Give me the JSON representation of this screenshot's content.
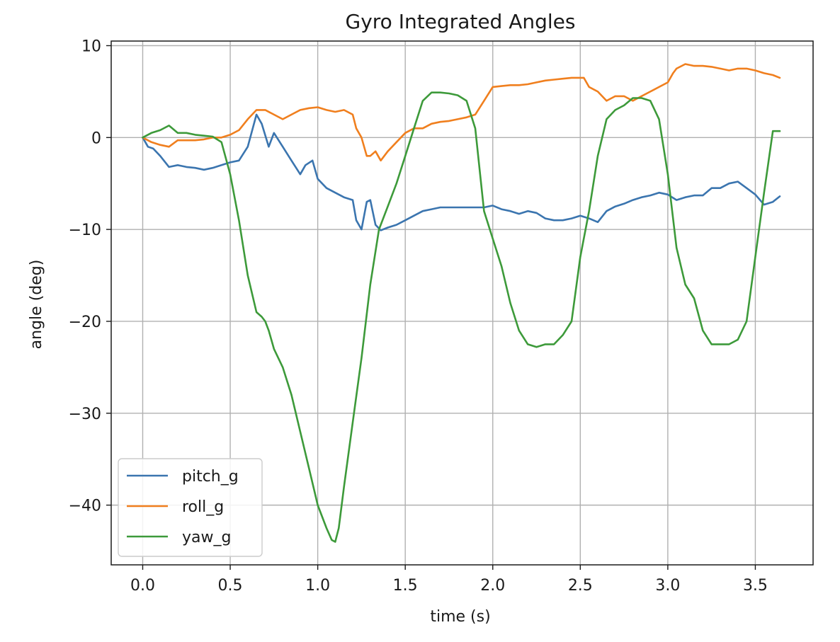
{
  "chart_data": {
    "type": "line",
    "title": "Gyro Integrated Angles",
    "xlabel": "time (s)",
    "ylabel": "angle (deg)",
    "xlim": [
      -0.18,
      3.83
    ],
    "ylim": [
      -46.5,
      10.5
    ],
    "xticks": [
      0.0,
      0.5,
      1.0,
      1.5,
      2.0,
      2.5,
      3.0,
      3.5
    ],
    "xtick_labels": [
      "0.0",
      "0.5",
      "1.0",
      "1.5",
      "2.0",
      "2.5",
      "3.0",
      "3.5"
    ],
    "yticks": [
      10,
      0,
      -10,
      -20,
      -30,
      -40
    ],
    "ytick_labels": [
      "10",
      "0",
      "−10",
      "−20",
      "−30",
      "−40"
    ],
    "grid": true,
    "legend": "lower left",
    "series": [
      {
        "name": "pitch_g",
        "color": "#3b75af",
        "x": [
          0.0,
          0.03,
          0.06,
          0.1,
          0.15,
          0.2,
          0.25,
          0.3,
          0.35,
          0.4,
          0.45,
          0.5,
          0.55,
          0.6,
          0.65,
          0.68,
          0.72,
          0.75,
          0.8,
          0.85,
          0.9,
          0.93,
          0.97,
          1.0,
          1.05,
          1.1,
          1.15,
          1.2,
          1.22,
          1.25,
          1.28,
          1.3,
          1.33,
          1.36,
          1.4,
          1.45,
          1.5,
          1.55,
          1.6,
          1.65,
          1.7,
          1.8,
          1.9,
          1.95,
          2.0,
          2.05,
          2.1,
          2.15,
          2.2,
          2.25,
          2.3,
          2.35,
          2.4,
          2.45,
          2.5,
          2.55,
          2.6,
          2.65,
          2.7,
          2.75,
          2.8,
          2.85,
          2.9,
          2.95,
          3.0,
          3.05,
          3.1,
          3.15,
          3.2,
          3.25,
          3.3,
          3.35,
          3.4,
          3.45,
          3.5,
          3.55,
          3.6,
          3.64
        ],
        "y": [
          0.0,
          -1.0,
          -1.2,
          -2.0,
          -3.2,
          -3.0,
          -3.2,
          -3.3,
          -3.5,
          -3.3,
          -3.0,
          -2.7,
          -2.5,
          -1.0,
          2.5,
          1.5,
          -1.0,
          0.5,
          -1.0,
          -2.5,
          -4.0,
          -3.0,
          -2.5,
          -4.5,
          -5.5,
          -6.0,
          -6.5,
          -6.8,
          -9.0,
          -10.0,
          -7.0,
          -6.8,
          -9.5,
          -10.1,
          -9.8,
          -9.5,
          -9.0,
          -8.5,
          -8.0,
          -7.8,
          -7.6,
          -7.6,
          -7.6,
          -7.6,
          -7.4,
          -7.8,
          -8.0,
          -8.3,
          -8.0,
          -8.2,
          -8.8,
          -9.0,
          -9.0,
          -8.8,
          -8.5,
          -8.8,
          -9.2,
          -8.0,
          -7.5,
          -7.2,
          -6.8,
          -6.5,
          -6.3,
          -6.0,
          -6.2,
          -6.8,
          -6.5,
          -6.3,
          -6.3,
          -5.5,
          -5.5,
          -5.0,
          -4.8,
          -5.5,
          -6.2,
          -7.3,
          -7.0,
          -6.4
        ]
      },
      {
        "name": "roll_g",
        "color": "#f07f1e",
        "x": [
          0.0,
          0.05,
          0.1,
          0.15,
          0.2,
          0.25,
          0.3,
          0.35,
          0.4,
          0.45,
          0.5,
          0.55,
          0.6,
          0.65,
          0.7,
          0.75,
          0.8,
          0.85,
          0.9,
          0.95,
          1.0,
          1.05,
          1.1,
          1.15,
          1.2,
          1.22,
          1.25,
          1.28,
          1.3,
          1.33,
          1.36,
          1.4,
          1.45,
          1.5,
          1.55,
          1.6,
          1.65,
          1.7,
          1.75,
          1.8,
          1.85,
          1.9,
          1.95,
          2.0,
          2.05,
          2.1,
          2.15,
          2.2,
          2.25,
          2.3,
          2.35,
          2.4,
          2.45,
          2.5,
          2.52,
          2.55,
          2.6,
          2.65,
          2.7,
          2.75,
          2.8,
          2.85,
          2.9,
          2.95,
          3.0,
          3.03,
          3.05,
          3.1,
          3.15,
          3.2,
          3.25,
          3.3,
          3.35,
          3.4,
          3.45,
          3.5,
          3.55,
          3.6,
          3.64
        ],
        "y": [
          0.0,
          -0.5,
          -0.8,
          -1.0,
          -0.3,
          -0.3,
          -0.3,
          -0.2,
          0.0,
          0.0,
          0.3,
          0.8,
          2.0,
          3.0,
          3.0,
          2.5,
          2.0,
          2.5,
          3.0,
          3.2,
          3.3,
          3.0,
          2.8,
          3.0,
          2.5,
          1.0,
          0.0,
          -2.0,
          -2.0,
          -1.5,
          -2.5,
          -1.5,
          -0.5,
          0.5,
          1.0,
          1.0,
          1.5,
          1.7,
          1.8,
          2.0,
          2.2,
          2.5,
          4.0,
          5.5,
          5.6,
          5.7,
          5.7,
          5.8,
          6.0,
          6.2,
          6.3,
          6.4,
          6.5,
          6.5,
          6.5,
          5.5,
          5.0,
          4.0,
          4.5,
          4.5,
          4.0,
          4.5,
          5.0,
          5.5,
          6.0,
          7.0,
          7.5,
          8.0,
          7.8,
          7.8,
          7.7,
          7.5,
          7.3,
          7.5,
          7.5,
          7.3,
          7.0,
          6.8,
          6.5
        ]
      },
      {
        "name": "yaw_g",
        "color": "#3d9a3a",
        "x": [
          0.0,
          0.05,
          0.1,
          0.15,
          0.2,
          0.25,
          0.3,
          0.35,
          0.4,
          0.45,
          0.5,
          0.55,
          0.6,
          0.65,
          0.68,
          0.7,
          0.72,
          0.75,
          0.8,
          0.85,
          0.9,
          0.95,
          1.0,
          1.05,
          1.08,
          1.1,
          1.12,
          1.15,
          1.2,
          1.25,
          1.3,
          1.35,
          1.4,
          1.45,
          1.5,
          1.55,
          1.6,
          1.65,
          1.7,
          1.75,
          1.8,
          1.85,
          1.9,
          1.95,
          2.0,
          2.05,
          2.1,
          2.15,
          2.2,
          2.25,
          2.3,
          2.35,
          2.4,
          2.45,
          2.5,
          2.55,
          2.6,
          2.65,
          2.7,
          2.75,
          2.8,
          2.85,
          2.9,
          2.95,
          3.0,
          3.05,
          3.1,
          3.15,
          3.2,
          3.25,
          3.3,
          3.35,
          3.4,
          3.45,
          3.5,
          3.55,
          3.6,
          3.64
        ],
        "y": [
          0.0,
          0.5,
          0.8,
          1.3,
          0.5,
          0.5,
          0.3,
          0.2,
          0.1,
          -0.5,
          -4.0,
          -9.0,
          -15.0,
          -19.0,
          -19.5,
          -20.0,
          -21.0,
          -23.0,
          -25.0,
          -28.0,
          -32.0,
          -36.0,
          -40.0,
          -42.5,
          -43.8,
          -44.0,
          -42.5,
          -38.0,
          -31.0,
          -24.0,
          -16.0,
          -10.0,
          -7.5,
          -5.0,
          -2.0,
          1.0,
          4.0,
          4.9,
          4.9,
          4.8,
          4.6,
          4.0,
          1.0,
          -8.0,
          -11.0,
          -14.0,
          -18.0,
          -21.0,
          -22.5,
          -22.8,
          -22.5,
          -22.5,
          -21.5,
          -20.0,
          -13.0,
          -8.0,
          -2.0,
          2.0,
          3.0,
          3.5,
          4.3,
          4.3,
          4.0,
          2.0,
          -4.0,
          -12.0,
          -16.0,
          -17.5,
          -21.0,
          -22.5,
          -22.5,
          -22.5,
          -22.0,
          -20.0,
          -13.0,
          -6.0,
          0.7,
          0.7
        ]
      }
    ]
  }
}
